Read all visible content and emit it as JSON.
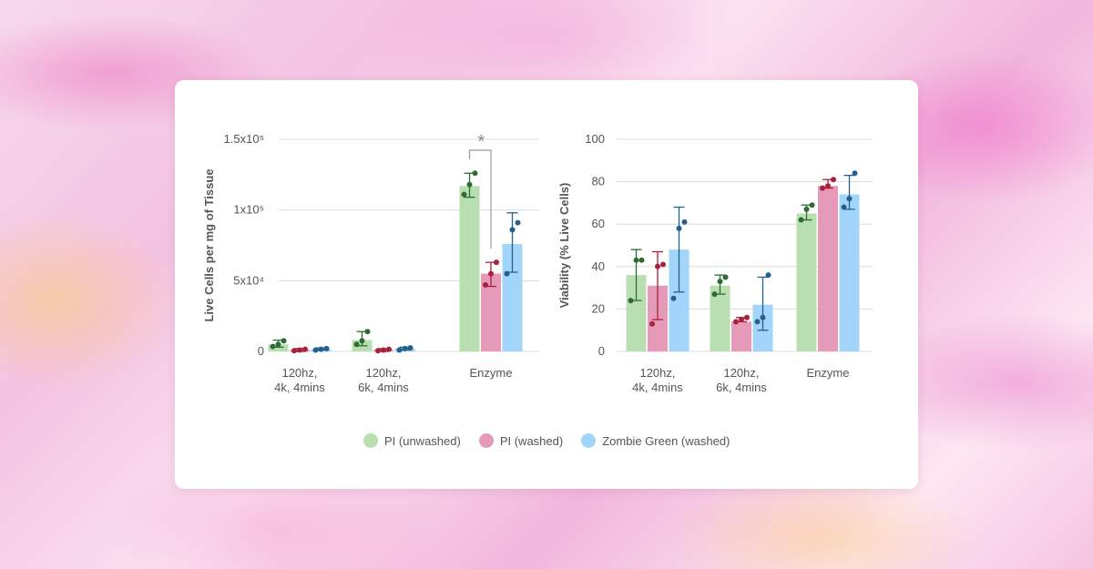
{
  "chart_data": [
    {
      "type": "bar",
      "ylabel": "Live Cells per mg of Tissue",
      "ylim": [
        0,
        150000
      ],
      "ytick_labels": [
        "0",
        "5x10⁴",
        "1x10⁵",
        "1.5x10⁵"
      ],
      "ytick_values": [
        0,
        50000,
        100000,
        150000
      ],
      "categories": [
        [
          "120hz,",
          "4k, 4mins"
        ],
        [
          "120hz,",
          "6k, 4mins"
        ],
        [
          "Enzyme"
        ]
      ],
      "series": [
        {
          "name": "PI (unwashed)",
          "values": [
            5000,
            8000,
            117000
          ],
          "err": [
            [
              3000,
              8000
            ],
            [
              4000,
              14000
            ],
            [
              109000,
              126000
            ]
          ],
          "points": [
            [
              3500,
              5000,
              7500
            ],
            [
              5000,
              7500,
              14000
            ],
            [
              111000,
              118000,
              126000
            ]
          ]
        },
        {
          "name": "PI (washed)",
          "values": [
            1000,
            1000,
            55000
          ],
          "err": [
            [
              0,
              2000
            ],
            [
              0,
              2000
            ],
            [
              46000,
              63000
            ]
          ],
          "points": [
            [
              500,
              1000,
              1500
            ],
            [
              500,
              1000,
              1500
            ],
            [
              47000,
              55000,
              63000
            ]
          ]
        },
        {
          "name": "Zombie Green (washed)",
          "values": [
            1500,
            2000,
            76000
          ],
          "err": [
            [
              1000,
              2500
            ],
            [
              1000,
              3000
            ],
            [
              56000,
              98000
            ]
          ],
          "points": [
            [
              1000,
              1500,
              2000
            ],
            [
              1000,
              2000,
              2500
            ],
            [
              55000,
              86000,
              91000
            ]
          ]
        }
      ],
      "annotation": {
        "text": "*",
        "between": [
          "PI (unwashed)",
          "PI (washed)"
        ],
        "category": "Enzyme"
      }
    },
    {
      "type": "bar",
      "ylabel": "Viability (% Live Cells)",
      "ylim": [
        0,
        100
      ],
      "ytick_labels": [
        "0",
        "20",
        "40",
        "60",
        "80",
        "100"
      ],
      "ytick_values": [
        0,
        20,
        40,
        60,
        80,
        100
      ],
      "categories": [
        [
          "120hz,",
          "4k, 4mins"
        ],
        [
          "120hz,",
          "6k, 4mins"
        ],
        [
          "Enzyme"
        ]
      ],
      "series": [
        {
          "name": "PI (unwashed)",
          "values": [
            36,
            31,
            65
          ],
          "err": [
            [
              24,
              48
            ],
            [
              27,
              36
            ],
            [
              62,
              69
            ]
          ],
          "points": [
            [
              24,
              43,
              43
            ],
            [
              27,
              33,
              35
            ],
            [
              62,
              67,
              69
            ]
          ]
        },
        {
          "name": "PI (washed)",
          "values": [
            31,
            14,
            78
          ],
          "err": [
            [
              15,
              47
            ],
            [
              14,
              16
            ],
            [
              77,
              81
            ]
          ],
          "points": [
            [
              13,
              40,
              41
            ],
            [
              14,
              15,
              16
            ],
            [
              77,
              78,
              81
            ]
          ]
        },
        {
          "name": "Zombie Green (washed)",
          "values": [
            48,
            22,
            74
          ],
          "err": [
            [
              28,
              68
            ],
            [
              10,
              35
            ],
            [
              67,
              83
            ]
          ],
          "points": [
            [
              25,
              58,
              61
            ],
            [
              14,
              16,
              36
            ],
            [
              68,
              72,
              84
            ]
          ]
        }
      ]
    }
  ],
  "legend": [
    {
      "label": "PI (unwashed)",
      "color": "#b9dfb0"
    },
    {
      "label": "PI (washed)",
      "color": "#e49ab8"
    },
    {
      "label": "Zombie Green (washed)",
      "color": "#a2d5f9"
    }
  ],
  "colors": {
    "bars": [
      "#b9dfb0",
      "#e49ab8",
      "#a2d5f9"
    ],
    "marks": [
      "#2e6b34",
      "#a8213a",
      "#23608e"
    ],
    "grid": "#dddddd",
    "annotation": "#999999"
  }
}
